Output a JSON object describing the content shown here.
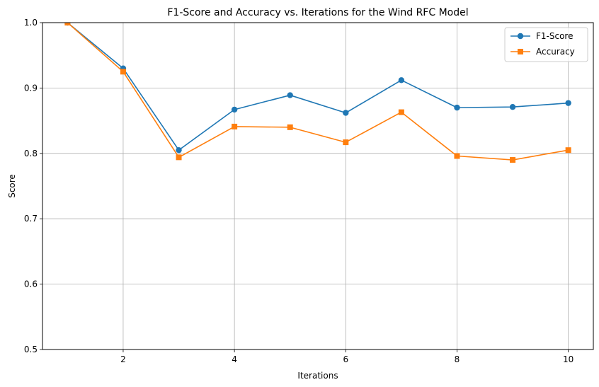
{
  "chart_data": {
    "type": "line",
    "title": "F1-Score and Accuracy vs. Iterations for the Wind RFC Model",
    "xlabel": "Iterations",
    "ylabel": "Score",
    "x": [
      1,
      2,
      3,
      4,
      5,
      6,
      7,
      8,
      9,
      10
    ],
    "xlim": [
      0.55,
      10.45
    ],
    "ylim": [
      0.5,
      1.0
    ],
    "xticks": [
      2,
      4,
      6,
      8,
      10
    ],
    "yticks": [
      0.5,
      0.6,
      0.7,
      0.8,
      0.9,
      1.0
    ],
    "xtick_labels": [
      "2",
      "4",
      "6",
      "8",
      "10"
    ],
    "ytick_labels": [
      "0.5",
      "0.6",
      "0.7",
      "0.8",
      "0.9",
      "1.0"
    ],
    "grid": true,
    "legend_position": "top-right",
    "series": [
      {
        "name": "F1-Score",
        "color": "#1f77b4",
        "marker": "circle",
        "values": [
          1.0,
          0.93,
          0.805,
          0.867,
          0.889,
          0.862,
          0.912,
          0.87,
          0.871,
          0.877
        ]
      },
      {
        "name": "Accuracy",
        "color": "#ff7f0e",
        "marker": "square",
        "values": [
          1.0,
          0.925,
          0.794,
          0.841,
          0.84,
          0.817,
          0.863,
          0.796,
          0.79,
          0.805
        ]
      }
    ]
  }
}
